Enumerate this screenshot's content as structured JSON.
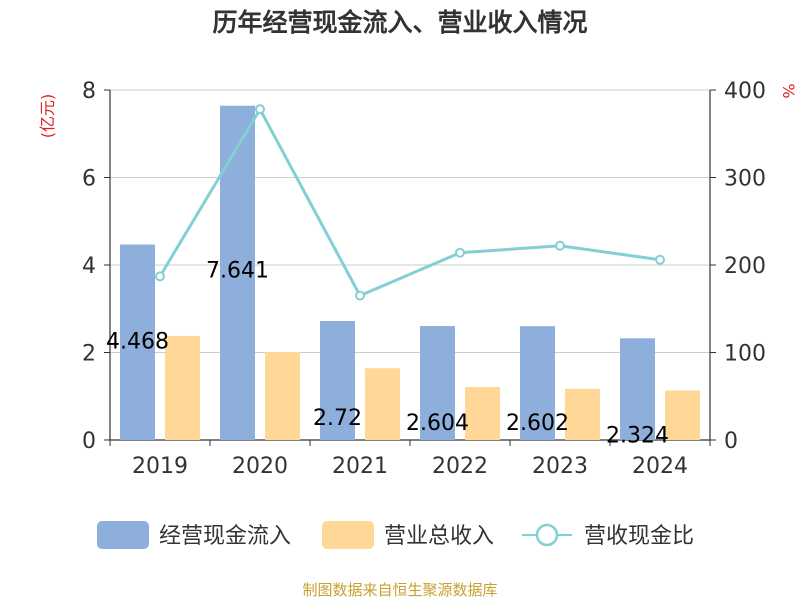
{
  "chart_data": {
    "type": "bar",
    "title": "历年经营现金流入、营业收入情况",
    "categories": [
      "2019",
      "2020",
      "2021",
      "2022",
      "2023",
      "2024"
    ],
    "left_axis": {
      "unit": "(亿元)",
      "ylim": [
        0,
        8
      ],
      "ticks": [
        "0",
        "2",
        "4",
        "6",
        "8"
      ]
    },
    "right_axis": {
      "unit": "%",
      "ylim": [
        0,
        400
      ],
      "ticks": [
        "0",
        "100",
        "200",
        "300",
        "400"
      ]
    },
    "series": [
      {
        "name": "经营现金流入",
        "type": "bar",
        "axis": "left",
        "color": "#8eaedb",
        "values": [
          4.468,
          7.641,
          2.72,
          2.604,
          2.602,
          2.324
        ],
        "labels": [
          "4.468",
          "7.641",
          "2.72",
          "2.604",
          "2.602",
          "2.324"
        ]
      },
      {
        "name": "营业总收入",
        "type": "bar",
        "axis": "left",
        "color": "#ffd797",
        "values": [
          2.38,
          2.01,
          1.64,
          1.21,
          1.17,
          1.13
        ]
      },
      {
        "name": "营收现金比",
        "type": "line",
        "axis": "right",
        "color": "#82d0d4",
        "values": [
          187,
          378,
          165,
          214,
          222,
          206
        ]
      }
    ],
    "grid": true,
    "legend": "bottom",
    "source": "制图数据来自恒生聚源数据库"
  }
}
